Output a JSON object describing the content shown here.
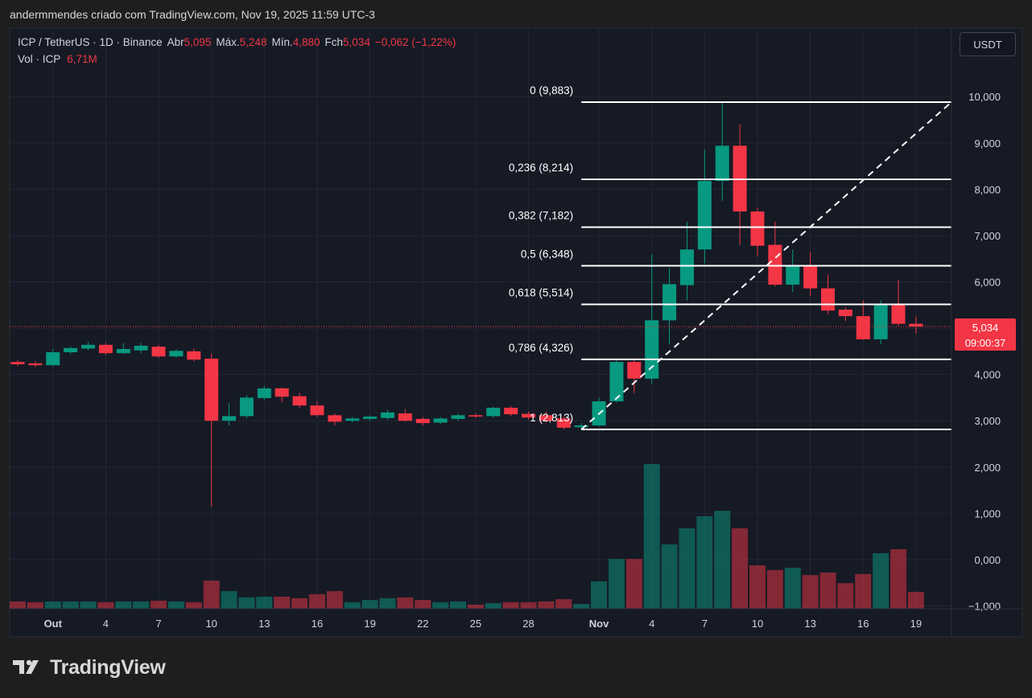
{
  "header": {
    "attribution": "andermmendes criado com TradingView.com, Nov 19, 2025 11:59 UTC-3"
  },
  "chart_data": {
    "type": "candlestick",
    "symbol": "ICP / TetherUS · 1D · Binance",
    "legend": {
      "open_label": "Abr",
      "open": "5,095",
      "high_label": "Máx.",
      "high": "5,248",
      "low_label": "Mín.",
      "low": "4,880",
      "close_label": "Fch",
      "close": "5,034",
      "change": "−0,062 (−1,22%)"
    },
    "volume_legend": {
      "label": "Vol · ICP",
      "value": "6,71M"
    },
    "currency": "USDT",
    "price_tag": {
      "label": "5,034",
      "countdown": "09:00:37"
    },
    "up_color": "#089981",
    "down_color": "#f23645",
    "categories": [
      null,
      null,
      "Out",
      null,
      null,
      "4",
      null,
      null,
      "7",
      null,
      null,
      "10",
      null,
      null,
      "13",
      null,
      null,
      "16",
      null,
      null,
      "19",
      null,
      null,
      "22",
      null,
      null,
      "25",
      null,
      null,
      "28",
      null,
      null,
      null,
      "Nov",
      null,
      null,
      "4",
      null,
      null,
      "7",
      null,
      null,
      "10",
      null,
      null,
      "13",
      null,
      null,
      "16",
      null,
      null,
      "19"
    ],
    "open": [
      4.27,
      4.24,
      4.2,
      4.48,
      4.56,
      4.64,
      4.46,
      4.52,
      4.6,
      4.39,
      4.5,
      4.34,
      3.0,
      3.1,
      3.49,
      3.7,
      3.53,
      3.33,
      3.12,
      3.0,
      3.04,
      3.06,
      3.16,
      3.04,
      2.96,
      3.04,
      3.12,
      3.1,
      3.28,
      3.15,
      3.12,
      3.05,
      2.86,
      2.9,
      3.42,
      4.27,
      3.91,
      5.17,
      5.93,
      6.7,
      8.18,
      8.94,
      7.52,
      6.8,
      5.94,
      6.36,
      5.86,
      5.4,
      5.26,
      4.76,
      5.5,
      5.095
    ],
    "high": [
      4.32,
      4.28,
      4.55,
      4.6,
      4.7,
      4.68,
      4.68,
      4.68,
      4.64,
      4.54,
      4.56,
      4.45,
      3.38,
      3.55,
      3.75,
      3.72,
      3.6,
      3.42,
      3.16,
      3.08,
      3.12,
      3.24,
      3.25,
      3.08,
      3.08,
      3.15,
      3.16,
      3.3,
      3.32,
      3.2,
      3.2,
      3.1,
      2.95,
      3.5,
      4.3,
      4.35,
      6.6,
      6.3,
      7.3,
      8.85,
      9.883,
      9.4,
      7.6,
      7.3,
      6.7,
      6.65,
      6.15,
      5.45,
      5.6,
      5.6,
      6.05,
      5.248
    ],
    "low": [
      4.18,
      4.16,
      4.18,
      4.44,
      4.52,
      4.42,
      4.44,
      4.46,
      4.36,
      4.36,
      4.28,
      1.15,
      2.9,
      3.05,
      3.45,
      3.4,
      3.28,
      3.08,
      2.9,
      2.97,
      3.0,
      3.02,
      2.98,
      2.9,
      2.93,
      3.0,
      3.06,
      3.07,
      3.1,
      3.02,
      2.96,
      2.813,
      2.82,
      2.88,
      3.4,
      3.6,
      3.8,
      4.65,
      5.6,
      6.4,
      7.75,
      6.8,
      6.55,
      5.9,
      5.78,
      5.7,
      5.3,
      5.15,
      4.75,
      4.65,
      5.05,
      4.88
    ],
    "close": [
      4.22,
      4.2,
      4.48,
      4.57,
      4.64,
      4.46,
      4.55,
      4.62,
      4.39,
      4.51,
      4.32,
      3.0,
      3.1,
      3.5,
      3.7,
      3.52,
      3.33,
      3.12,
      2.98,
      3.05,
      3.09,
      3.18,
      3.0,
      2.95,
      3.05,
      3.12,
      3.09,
      3.28,
      3.14,
      3.07,
      3.0,
      2.85,
      2.9,
      3.42,
      4.27,
      3.91,
      5.17,
      5.95,
      6.7,
      8.18,
      8.94,
      7.52,
      6.78,
      5.94,
      6.36,
      5.86,
      5.38,
      5.26,
      4.76,
      5.5,
      5.095,
      5.034
    ],
    "volume": [
      2.9,
      2.6,
      2.9,
      2.9,
      2.9,
      2.6,
      2.9,
      2.9,
      3.2,
      2.9,
      2.6,
      11.2,
      7.0,
      4.5,
      4.8,
      4.8,
      4.2,
      5.8,
      7.0,
      2.6,
      3.5,
      4.2,
      4.5,
      3.5,
      2.6,
      2.9,
      1.6,
      2.2,
      2.6,
      2.6,
      2.9,
      3.8,
      1.9,
      10.9,
      19.8,
      19.8,
      57.6,
      25.6,
      32.0,
      36.8,
      39.0,
      32.0,
      17.3,
      15.4,
      16.3,
      13.4,
      14.4,
      10.2,
      13.8,
      22.1,
      23.7,
      6.71
    ],
    "ylim": [
      -1.06,
      11.48
    ],
    "yticks": [
      {
        "value": 10,
        "label": "10,000"
      },
      {
        "value": 9,
        "label": "9,000"
      },
      {
        "value": 8,
        "label": "8,000"
      },
      {
        "value": 7,
        "label": "7,000"
      },
      {
        "value": 6,
        "label": "6,000"
      },
      {
        "value": 5,
        "label": "5,000"
      },
      {
        "value": 4,
        "label": "4,000"
      },
      {
        "value": 3,
        "label": "3,000"
      },
      {
        "value": 2,
        "label": "2,000"
      },
      {
        "value": 1,
        "label": "1,000"
      },
      {
        "value": 0,
        "label": "0,000"
      },
      {
        "value": -1,
        "label": "−1,000"
      }
    ],
    "grid": true,
    "fib_levels": [
      {
        "label": "0 (9,883)",
        "value": 9.883
      },
      {
        "label": "0,236 (8,214)",
        "value": 8.214
      },
      {
        "label": "0,382 (7,182)",
        "value": 7.182
      },
      {
        "label": "0,5 (6,348)",
        "value": 6.348
      },
      {
        "label": "0,618 (5,514)",
        "value": 5.514
      },
      {
        "label": "0,786 (4,326)",
        "value": 4.326
      },
      {
        "label": "1 (2,813)",
        "value": 2.813
      }
    ]
  },
  "footer": {
    "brand": "TradingView"
  }
}
